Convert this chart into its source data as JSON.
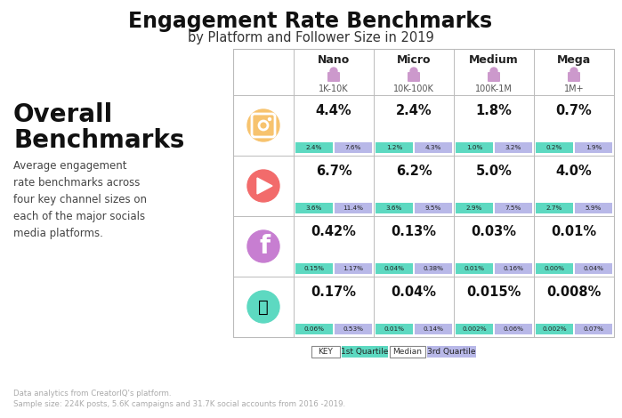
{
  "title": "Engagement Rate Benchmarks",
  "subtitle": "by Platform and Follower Size in 2019",
  "left_heading": "Overall\nBenchmarks",
  "left_desc": "Average engagement\nrate benchmarks across\nfour key channel sizes on\neach of the major socials\nmedia platforms.",
  "footer1": "Data analytics from CreatorIQ's platform.",
  "footer2": "Sample size: 224K posts, 5.6K campaigns and 31.7K social accounts from 2016 -2019.",
  "col_headers": [
    "Nano",
    "Micro",
    "Medium",
    "Mega"
  ],
  "col_sub": [
    "1K-10K",
    "10K-100K",
    "100K-1M",
    "1M+"
  ],
  "platform_colors": [
    "#F7C36E",
    "#F26B6B",
    "#C77ED1",
    "#5DD9C1"
  ],
  "medians": [
    "4.4%",
    "2.4%",
    "1.8%",
    "0.7%",
    "6.7%",
    "6.2%",
    "5.0%",
    "4.0%",
    "0.42%",
    "0.13%",
    "0.03%",
    "0.01%",
    "0.17%",
    "0.04%",
    "0.015%",
    "0.008%"
  ],
  "q1_vals": [
    "2.4%",
    "1.2%",
    "1.0%",
    "0.2%",
    "3.6%",
    "3.6%",
    "2.9%",
    "2.7%",
    "0.15%",
    "0.04%",
    "0.01%",
    "0.00%",
    "0.06%",
    "0.01%",
    "0.002%",
    "0.002%"
  ],
  "q3_vals": [
    "7.6%",
    "4.3%",
    "3.2%",
    "1.9%",
    "11.4%",
    "9.5%",
    "7.5%",
    "5.9%",
    "1.17%",
    "0.38%",
    "0.16%",
    "0.04%",
    "0.53%",
    "0.14%",
    "0.06%",
    "0.07%"
  ],
  "teal_color": "#5DD9C1",
  "lavender_color": "#B8B8E8",
  "bg_color": "#FFFFFF",
  "key_label": "KEY",
  "key_q1": "1st Quartile",
  "key_med": "Median",
  "key_q3": "3rd Quartile"
}
